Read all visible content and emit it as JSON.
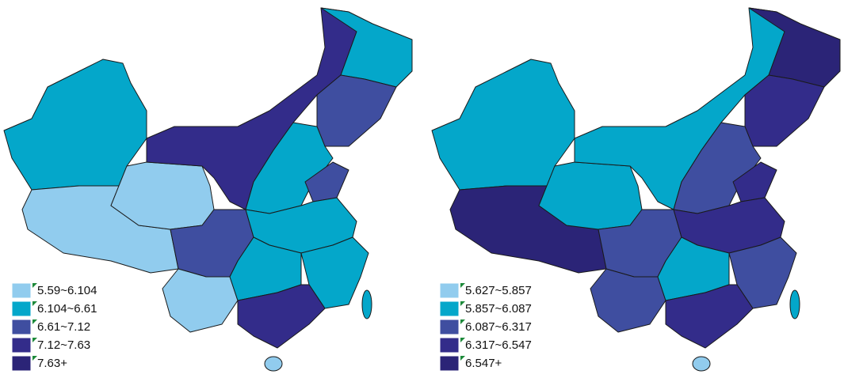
{
  "maps": [
    {
      "legend": [
        {
          "label": "5.59~6.104",
          "color": "#91ccee"
        },
        {
          "label": "6.104~6.61",
          "color": "#04a7ca"
        },
        {
          "label": "6.61~7.12",
          "color": "#3f4ea0"
        },
        {
          "label": "7.12~7.63",
          "color": "#332c8a"
        },
        {
          "label": "7.63+",
          "color": "#2b2477"
        }
      ]
    },
    {
      "legend": [
        {
          "label": "5.627~5.857",
          "color": "#91ccee"
        },
        {
          "label": "5.857~6.087",
          "color": "#04a7ca"
        },
        {
          "label": "6.087~6.317",
          "color": "#3f4ea0"
        },
        {
          "label": "6.317~6.547",
          "color": "#332c8a"
        },
        {
          "label": "6.547+",
          "color": "#2b2477"
        }
      ]
    }
  ]
}
